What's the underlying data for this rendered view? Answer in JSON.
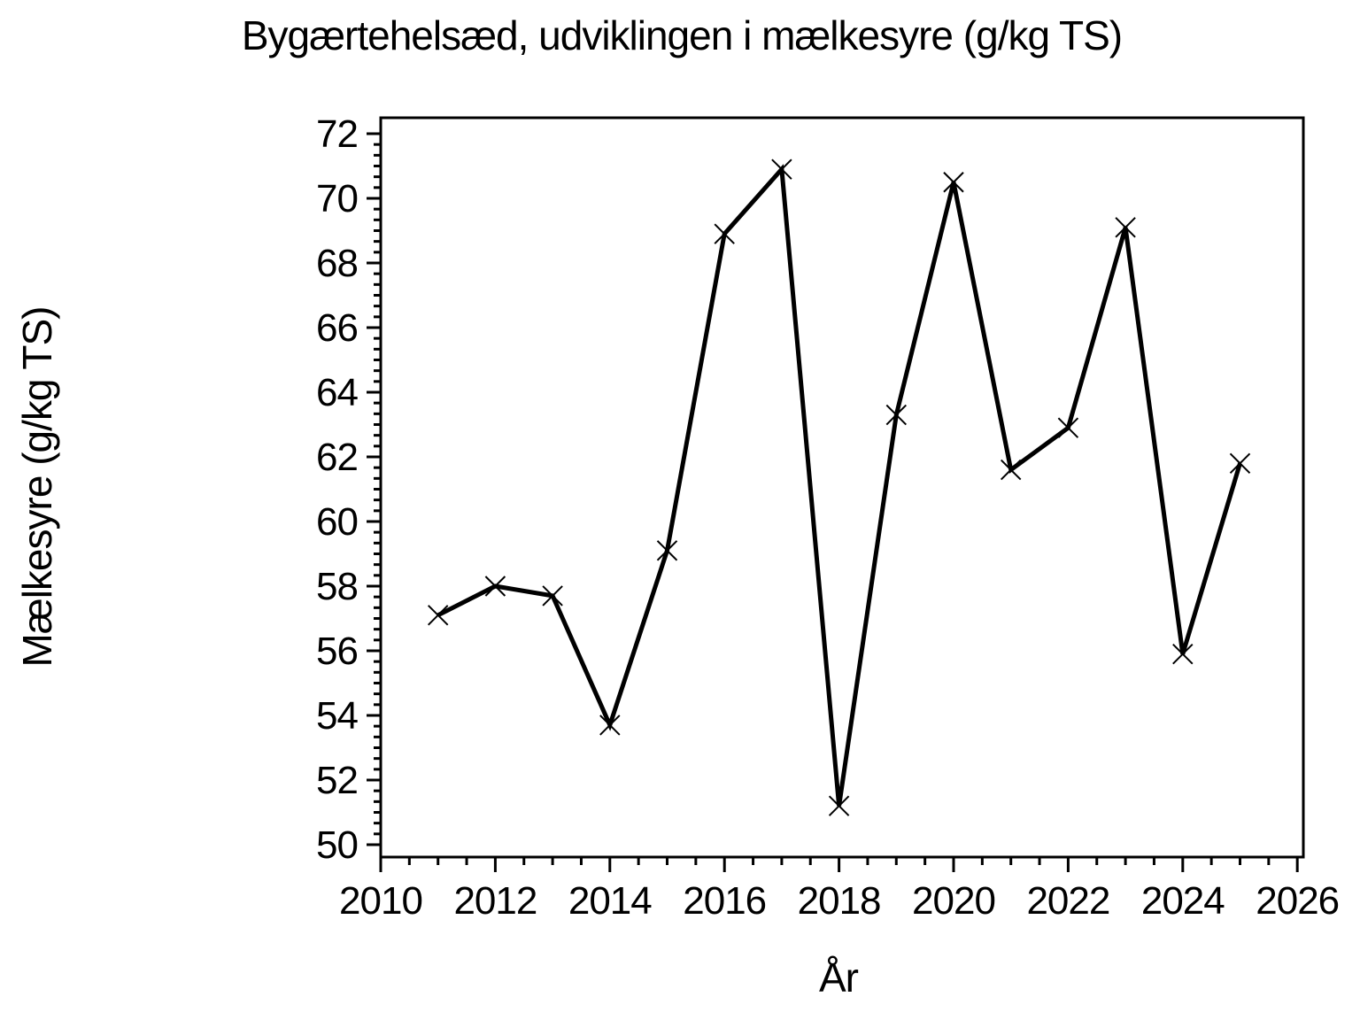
{
  "chart": {
    "title": "Bygærtehelsæd, udviklingen i mælkesyre  (g/kg TS)",
    "xlabel": "År",
    "ylabel": "Mælkesyre  (g/kg TS)"
  },
  "chart_data": {
    "type": "line",
    "title": "Bygærtehelsæd, udviklingen i mælkesyre (g/kg TS)",
    "xlabel": "År",
    "ylabel": "Mælkesyre (g/kg TS)",
    "x": [
      2011,
      2012,
      2013,
      2014,
      2015,
      2016,
      2017,
      2018,
      2019,
      2020,
      2021,
      2022,
      2023,
      2024,
      2025
    ],
    "values": [
      57.1,
      58.0,
      57.7,
      53.7,
      59.1,
      68.9,
      70.9,
      51.2,
      63.3,
      70.5,
      61.6,
      62.9,
      69.1,
      55.9,
      61.8
    ],
    "series_name": "Mælkesyre",
    "xlim": [
      2010,
      2026
    ],
    "ylim": [
      50,
      72
    ],
    "x_ticks": [
      2010,
      2012,
      2014,
      2016,
      2018,
      2020,
      2022,
      2024,
      2026
    ],
    "y_ticks": [
      50,
      52,
      54,
      56,
      58,
      60,
      62,
      64,
      66,
      68,
      70,
      72
    ],
    "x_minor_step": 0.5,
    "y_minor_step": 0.3333333,
    "grid": false,
    "legend_position": "none",
    "marker": "x",
    "line_color": "#000000",
    "background_color": "#ffffff",
    "frame": true
  }
}
